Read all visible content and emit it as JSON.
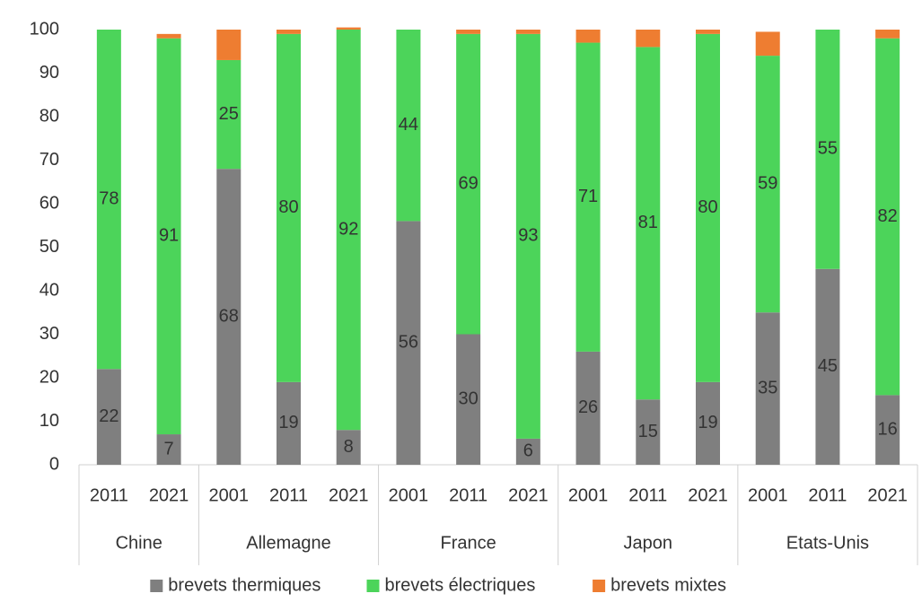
{
  "chart_data": {
    "type": "stacked_bar",
    "groups": [
      {
        "name": "Chine",
        "categories": [
          "2011",
          "2021"
        ]
      },
      {
        "name": "Allemagne",
        "categories": [
          "2001",
          "2011",
          "2021"
        ]
      },
      {
        "name": "France",
        "categories": [
          "2001",
          "2011",
          "2021"
        ]
      },
      {
        "name": "Japon",
        "categories": [
          "2001",
          "2011",
          "2021"
        ]
      },
      {
        "name": "Etats-Unis",
        "categories": [
          "2001",
          "2011",
          "2021"
        ]
      }
    ],
    "series": [
      {
        "name": "brevets thermiques",
        "color": "#7f7f7f",
        "show_labels": true,
        "values": [
          22,
          7,
          68,
          19,
          8,
          56,
          30,
          6,
          26,
          15,
          19,
          35,
          45,
          16
        ]
      },
      {
        "name": "brevets électriques",
        "color": "#4cd45a",
        "show_labels": true,
        "values": [
          78,
          91,
          25,
          80,
          92,
          44,
          69,
          93,
          71,
          81,
          80,
          59,
          55,
          82
        ]
      },
      {
        "name": "brevets mixtes",
        "color": "#ee7d31",
        "show_labels": false,
        "values": [
          0,
          1,
          7,
          1,
          0.5,
          0,
          1,
          1,
          3,
          4,
          1,
          5.5,
          0,
          2
        ]
      }
    ],
    "ylim": [
      0,
      100
    ],
    "yticks": [
      0,
      10,
      20,
      30,
      40,
      50,
      60,
      70,
      80,
      90,
      100
    ],
    "legend": "bottom"
  }
}
